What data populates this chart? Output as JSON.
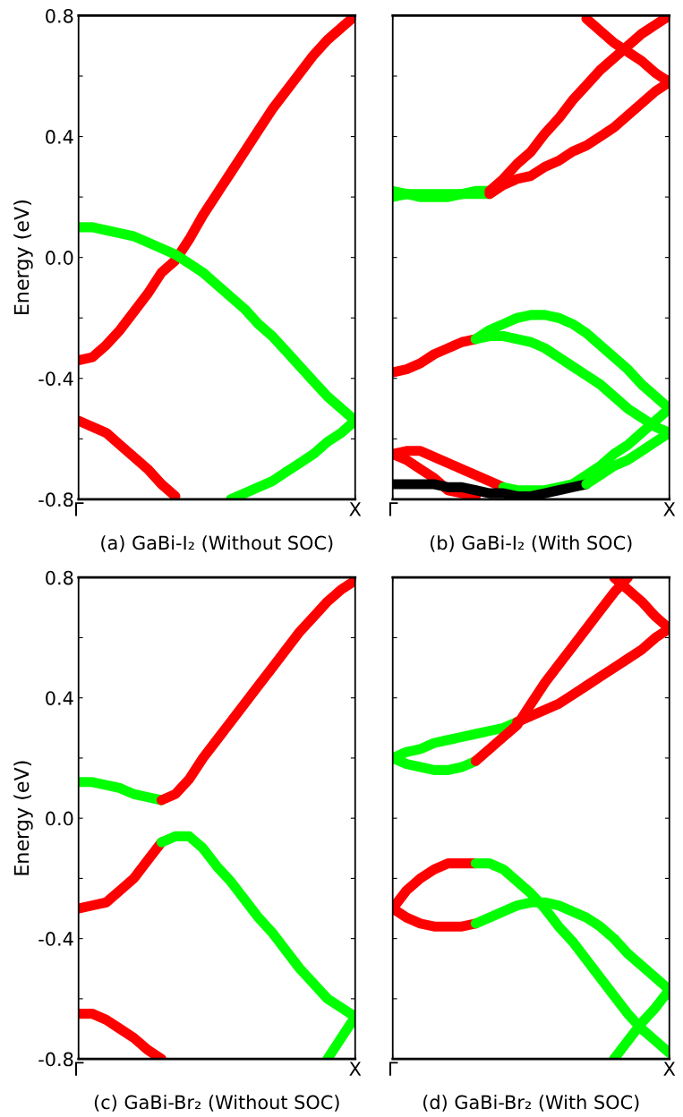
{
  "chart_data": [
    {
      "type": "line",
      "title": "(a) GaBi-I₂ (Without SOC)",
      "ylabel": "Energy (eV)",
      "ylim": [
        -0.8,
        0.8
      ],
      "categories": [
        "Γ",
        null,
        null,
        null,
        null,
        null,
        null,
        null,
        null,
        null,
        null,
        null,
        null,
        null,
        null,
        null,
        null,
        null,
        null,
        null,
        "X"
      ],
      "yticks": [
        -0.8,
        {
          "value": -0.6,
          "label": null
        },
        -0.4,
        {
          "value": -0.2,
          "label": null
        },
        {
          "value": 0,
          "label": "0.0"
        },
        {
          "value": 0.2,
          "label": null
        },
        0.4,
        {
          "value": 0.6,
          "label": null
        },
        0.8
      ],
      "series": [
        {
          "color": "#ff0000",
          "values": [
            -0.34,
            -0.33,
            -0.29,
            -0.24,
            -0.18,
            -0.12,
            -0.05,
            -0.01,
            0.06,
            0.14,
            0.21,
            0.28,
            0.35,
            0.42,
            0.49,
            0.55,
            0.61,
            0.67,
            0.72,
            0.76,
            0.8
          ]
        },
        {
          "color": "#00ff00",
          "values": [
            0.1,
            0.1,
            0.09,
            0.08,
            0.07,
            0.05,
            0.03,
            0.01,
            -0.02,
            -0.05,
            -0.09,
            -0.13,
            -0.17,
            -0.22,
            -0.26,
            -0.31,
            -0.36,
            -0.41,
            -0.46,
            -0.5,
            -0.54
          ]
        },
        {
          "color": "#ff0000",
          "values": [
            -0.54,
            -0.56,
            -0.58,
            -0.62,
            -0.66,
            -0.7,
            -0.75,
            -0.79,
            null,
            null,
            null,
            null,
            null,
            null,
            null,
            null,
            null,
            null,
            null,
            null,
            null
          ]
        },
        {
          "color": "#00ff00",
          "values": [
            null,
            null,
            null,
            null,
            null,
            null,
            null,
            null,
            null,
            null,
            null,
            -0.8,
            -0.78,
            -0.76,
            -0.74,
            -0.71,
            -0.68,
            -0.65,
            -0.61,
            -0.58,
            -0.54
          ]
        }
      ]
    },
    {
      "type": "line",
      "title": "(b) GaBi-I₂ (With SOC)",
      "ylim": [
        -0.8,
        0.8
      ],
      "tick_labels": "x",
      "categories": [
        "Γ",
        null,
        null,
        null,
        null,
        null,
        null,
        null,
        null,
        null,
        null,
        null,
        null,
        null,
        null,
        null,
        null,
        null,
        null,
        null,
        "X"
      ],
      "yticks": [
        {
          "value": -0.8,
          "label": null
        },
        {
          "value": -0.6,
          "label": null
        },
        {
          "value": -0.4,
          "label": null
        },
        {
          "value": -0.2,
          "label": null
        },
        {
          "value": 0,
          "label": null
        },
        {
          "value": 0.2,
          "label": null
        },
        {
          "value": 0.4,
          "label": null
        },
        {
          "value": 0.6,
          "label": null
        },
        {
          "value": 0.8,
          "label": null
        }
      ],
      "series": [
        {
          "color": "#00ff00",
          "values": [
            0.22,
            0.21,
            0.21,
            0.21,
            0.21,
            0.21,
            0.22,
            0.22,
            null,
            null,
            null,
            null,
            null,
            null,
            null,
            null,
            null,
            null,
            null,
            null,
            null
          ]
        },
        {
          "color": "#00ff00",
          "values": [
            0.2,
            0.21,
            0.2,
            0.2,
            0.2,
            0.21,
            0.21,
            0.21,
            null,
            null,
            null,
            null,
            null,
            null,
            null,
            null,
            null,
            null,
            null,
            null,
            null
          ]
        },
        {
          "color": "#ff0000",
          "values": [
            null,
            null,
            null,
            null,
            null,
            null,
            null,
            0.22,
            0.26,
            0.31,
            0.35,
            0.41,
            0.46,
            0.52,
            0.57,
            0.62,
            0.66,
            0.7,
            0.74,
            0.77,
            0.8
          ]
        },
        {
          "color": "#ff0000",
          "values": [
            null,
            null,
            null,
            null,
            null,
            null,
            null,
            0.21,
            0.24,
            0.26,
            0.27,
            0.3,
            0.32,
            0.35,
            0.37,
            0.4,
            0.43,
            0.47,
            0.51,
            0.55,
            0.58
          ]
        },
        {
          "color": "#ff0000",
          "values": [
            null,
            null,
            null,
            null,
            null,
            null,
            null,
            null,
            null,
            null,
            null,
            null,
            null,
            null,
            0.79,
            0.75,
            0.71,
            0.68,
            0.65,
            0.61,
            0.58
          ]
        },
        {
          "color": "#ff0000",
          "values": [
            -0.38,
            -0.37,
            -0.35,
            -0.32,
            -0.3,
            -0.28,
            -0.27,
            null,
            null,
            null,
            null,
            null,
            null,
            null,
            null,
            null,
            null,
            null,
            null,
            null,
            null
          ]
        },
        {
          "color": "#00ff00",
          "values": [
            null,
            null,
            null,
            null,
            null,
            null,
            -0.27,
            -0.24,
            -0.22,
            -0.2,
            -0.19,
            -0.19,
            -0.2,
            -0.22,
            -0.25,
            -0.29,
            -0.33,
            -0.37,
            -0.42,
            -0.46,
            -0.5
          ]
        },
        {
          "color": "#00ff00",
          "values": [
            null,
            null,
            null,
            null,
            null,
            null,
            -0.27,
            -0.26,
            -0.26,
            -0.27,
            -0.28,
            -0.3,
            -0.33,
            -0.36,
            -0.39,
            -0.42,
            -0.46,
            -0.5,
            -0.53,
            -0.56,
            -0.58
          ]
        },
        {
          "color": "#ff0000",
          "values": [
            -0.65,
            -0.64,
            -0.64,
            -0.66,
            -0.68,
            -0.7,
            -0.72,
            -0.74,
            -0.76,
            null,
            null,
            null,
            null,
            null,
            null,
            null,
            null,
            null,
            null,
            null,
            null
          ]
        },
        {
          "color": "#00ff00",
          "values": [
            null,
            null,
            null,
            null,
            null,
            null,
            null,
            null,
            -0.76,
            -0.77,
            -0.77,
            -0.77,
            -0.76,
            -0.75,
            -0.72,
            -0.69,
            -0.65,
            -0.62,
            -0.58,
            -0.54,
            -0.5
          ]
        },
        {
          "color": "#ff0000",
          "values": [
            -0.65,
            -0.67,
            -0.7,
            -0.73,
            -0.77,
            -0.78,
            -0.79,
            null,
            null,
            null,
            null,
            null,
            null,
            null,
            null,
            null,
            null,
            null,
            null,
            null,
            null
          ]
        },
        {
          "color": "#000000",
          "values": [
            -0.75,
            -0.75,
            -0.75,
            -0.75,
            -0.76,
            -0.76,
            -0.77,
            -0.78,
            -0.78,
            -0.79,
            -0.79,
            -0.78,
            -0.77,
            -0.76,
            -0.75,
            null,
            null,
            null,
            null,
            null,
            null
          ]
        },
        {
          "color": "#00ff00",
          "values": [
            null,
            null,
            null,
            null,
            null,
            null,
            null,
            null,
            null,
            null,
            null,
            null,
            null,
            null,
            -0.75,
            -0.72,
            -0.69,
            -0.67,
            -0.64,
            -0.61,
            -0.58
          ]
        }
      ]
    },
    {
      "type": "line",
      "title": "(c) GaBi-Br₂ (Without SOC)",
      "ylabel": "Energy (eV)",
      "ylim": [
        -0.8,
        0.8
      ],
      "categories": [
        "Γ",
        null,
        null,
        null,
        null,
        null,
        null,
        null,
        null,
        null,
        null,
        null,
        null,
        null,
        null,
        null,
        null,
        null,
        null,
        null,
        "X"
      ],
      "yticks": [
        -0.8,
        {
          "value": -0.6,
          "label": null
        },
        -0.4,
        {
          "value": -0.2,
          "label": null
        },
        {
          "value": 0,
          "label": "0.0"
        },
        {
          "value": 0.2,
          "label": null
        },
        0.4,
        {
          "value": 0.6,
          "label": null
        },
        0.8
      ],
      "series": [
        {
          "color": "#00ff00",
          "values": [
            0.12,
            0.12,
            0.11,
            0.1,
            0.08,
            0.07,
            0.06,
            null,
            null,
            null,
            null,
            null,
            null,
            null,
            null,
            null,
            null,
            null,
            null,
            null,
            null
          ]
        },
        {
          "color": "#ff0000",
          "values": [
            null,
            null,
            null,
            null,
            null,
            null,
            0.06,
            0.08,
            0.13,
            0.2,
            0.26,
            0.32,
            0.38,
            0.44,
            0.5,
            0.56,
            0.62,
            0.67,
            0.72,
            0.76,
            0.79
          ]
        },
        {
          "color": "#ff0000",
          "values": [
            -0.3,
            -0.29,
            -0.28,
            -0.24,
            -0.2,
            -0.14,
            -0.08,
            null,
            null,
            null,
            null,
            null,
            null,
            null,
            null,
            null,
            null,
            null,
            null,
            null,
            null
          ]
        },
        {
          "color": "#00ff00",
          "values": [
            null,
            null,
            null,
            null,
            null,
            null,
            -0.08,
            -0.06,
            -0.06,
            -0.1,
            -0.16,
            -0.21,
            -0.27,
            -0.33,
            -0.38,
            -0.44,
            -0.5,
            -0.55,
            -0.6,
            -0.63,
            -0.66
          ]
        },
        {
          "color": "#ff0000",
          "values": [
            -0.65,
            -0.65,
            -0.67,
            -0.7,
            -0.73,
            -0.77,
            -0.8,
            null,
            null,
            null,
            null,
            null,
            null,
            null,
            null,
            null,
            null,
            null,
            null,
            null,
            null
          ]
        },
        {
          "color": "#00ff00",
          "values": [
            null,
            null,
            null,
            null,
            null,
            null,
            null,
            null,
            null,
            null,
            null,
            null,
            null,
            null,
            null,
            null,
            null,
            null,
            -0.8,
            -0.73,
            -0.66
          ]
        }
      ]
    },
    {
      "type": "line",
      "title": "(d) GaBi-Br₂ (With SOC)",
      "ylim": [
        -0.8,
        0.8
      ],
      "tick_labels": "x",
      "categories": [
        "Γ",
        null,
        null,
        null,
        null,
        null,
        null,
        null,
        null,
        null,
        null,
        null,
        null,
        null,
        null,
        null,
        null,
        null,
        null,
        null,
        "X"
      ],
      "yticks": [
        {
          "value": -0.8,
          "label": null
        },
        {
          "value": -0.6,
          "label": null
        },
        {
          "value": -0.4,
          "label": null
        },
        {
          "value": -0.2,
          "label": null
        },
        {
          "value": 0,
          "label": null
        },
        {
          "value": 0.2,
          "label": null
        },
        {
          "value": 0.4,
          "label": null
        },
        {
          "value": 0.6,
          "label": null
        },
        {
          "value": 0.8,
          "label": null
        }
      ],
      "series": [
        {
          "color": "#00ff00",
          "values": [
            0.2,
            0.22,
            0.23,
            0.25,
            0.26,
            0.27,
            0.28,
            0.29,
            0.3,
            0.32,
            null,
            null,
            null,
            null,
            null,
            null,
            null,
            null,
            null,
            null,
            null
          ]
        },
        {
          "color": "#ff0000",
          "values": [
            null,
            null,
            null,
            null,
            null,
            null,
            null,
            null,
            null,
            0.32,
            0.34,
            0.36,
            0.38,
            0.41,
            0.44,
            0.47,
            0.5,
            0.53,
            0.56,
            0.6,
            0.63
          ]
        },
        {
          "color": "#00ff00",
          "values": [
            0.2,
            0.18,
            0.17,
            0.16,
            0.16,
            0.17,
            0.19,
            null,
            null,
            null,
            null,
            null,
            null,
            null,
            null,
            null,
            null,
            null,
            null,
            null,
            null
          ]
        },
        {
          "color": "#ff0000",
          "values": [
            null,
            null,
            null,
            null,
            null,
            null,
            0.19,
            0.23,
            0.27,
            0.31,
            0.38,
            0.45,
            0.51,
            0.57,
            0.63,
            0.69,
            0.75,
            0.8,
            null,
            null,
            null
          ]
        },
        {
          "color": "#ff0000",
          "values": [
            null,
            null,
            null,
            null,
            null,
            null,
            null,
            null,
            null,
            null,
            null,
            null,
            null,
            null,
            null,
            null,
            0.8,
            0.76,
            0.72,
            0.67,
            0.63
          ]
        },
        {
          "color": "#ff0000",
          "values": [
            -0.3,
            -0.24,
            -0.2,
            -0.17,
            -0.15,
            -0.15,
            -0.15,
            null,
            null,
            null,
            null,
            null,
            null,
            null,
            null,
            null,
            null,
            null,
            null,
            null,
            null
          ]
        },
        {
          "color": "#00ff00",
          "values": [
            null,
            null,
            null,
            null,
            null,
            null,
            -0.15,
            -0.15,
            -0.17,
            -0.21,
            -0.25,
            -0.3,
            -0.36,
            -0.41,
            -0.47,
            -0.53,
            -0.59,
            -0.65,
            -0.7,
            -0.74,
            -0.78
          ]
        },
        {
          "color": "#ff0000",
          "values": [
            -0.3,
            -0.33,
            -0.35,
            -0.36,
            -0.36,
            -0.36,
            -0.35,
            null,
            null,
            null,
            null,
            null,
            null,
            null,
            null,
            null,
            null,
            null,
            null,
            null,
            null
          ]
        },
        {
          "color": "#00ff00",
          "values": [
            null,
            null,
            null,
            null,
            null,
            null,
            -0.35,
            -0.33,
            -0.31,
            -0.29,
            -0.28,
            -0.28,
            -0.29,
            -0.31,
            -0.33,
            -0.36,
            -0.4,
            -0.45,
            -0.49,
            -0.53,
            -0.57
          ]
        },
        {
          "color": "#00ff00",
          "values": [
            null,
            null,
            null,
            null,
            null,
            null,
            null,
            null,
            null,
            null,
            null,
            null,
            null,
            null,
            null,
            null,
            -0.8,
            -0.74,
            -0.68,
            -0.63,
            -0.57
          ]
        }
      ]
    }
  ]
}
